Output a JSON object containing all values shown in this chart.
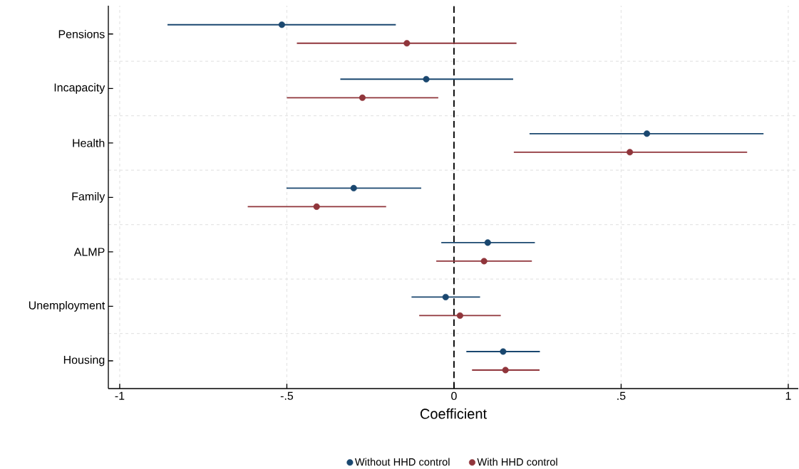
{
  "chart_data": {
    "type": "scatter",
    "orientation": "horizontal",
    "xlabel": "Coefficient",
    "categories": [
      "Pensions",
      "Incapacity",
      "Health",
      "Family",
      "ALMP",
      "Unemployment",
      "Housing"
    ],
    "series": [
      {
        "name": "Without HHD control",
        "color": "#1a476f",
        "values": [
          -0.515,
          -0.083,
          0.577,
          -0.3,
          0.101,
          -0.025,
          0.147
        ],
        "errors": [
          [
            -0.857,
            -0.174
          ],
          [
            -0.34,
            0.177
          ],
          [
            0.226,
            0.926
          ],
          [
            -0.501,
            -0.098
          ],
          [
            -0.038,
            0.242
          ],
          [
            -0.127,
            0.078
          ],
          [
            0.037,
            0.257
          ]
        ]
      },
      {
        "name": "With HHD control",
        "color": "#90353b",
        "values": [
          -0.141,
          -0.274,
          0.526,
          -0.411,
          0.09,
          0.018,
          0.154
        ],
        "errors": [
          [
            -0.47,
            0.187
          ],
          [
            -0.5,
            -0.047
          ],
          [
            0.179,
            0.877
          ],
          [
            -0.617,
            -0.203
          ],
          [
            -0.053,
            0.233
          ],
          [
            -0.104,
            0.14
          ],
          [
            0.054,
            0.256
          ]
        ]
      }
    ],
    "xlim": [
      -1.034,
      1.03
    ],
    "xticks": [
      {
        "value": -1,
        "label": "-1"
      },
      {
        "value": -0.5,
        "label": "-.5"
      },
      0,
      {
        "value": 0.5,
        "label": ".5"
      },
      1
    ],
    "ref_lines": [
      {
        "axis": "x",
        "value": 0,
        "color": "#000000",
        "line_style": "dashed"
      }
    ],
    "grid": true,
    "legend": "bottom",
    "marker": "circle"
  }
}
